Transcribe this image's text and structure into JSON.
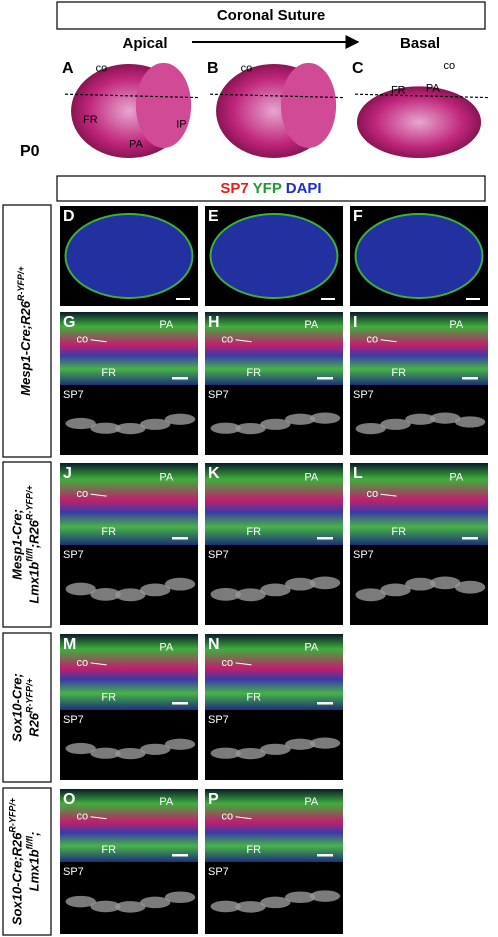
{
  "header": {
    "title": "Coronal Suture",
    "apical": "Apical",
    "basal": "Basal"
  },
  "stage": "P0",
  "top_panels": [
    {
      "letter": "A",
      "labels": [
        "co",
        "FR",
        "PA",
        "IP"
      ]
    },
    {
      "letter": "B",
      "labels": [
        "co"
      ]
    },
    {
      "letter": "C",
      "labels": [
        "co",
        "FR",
        "PA"
      ]
    }
  ],
  "stain_legend": {
    "sp7": "SP7",
    "yfp": "YFP",
    "dapi": "DAPI"
  },
  "overview_panels": [
    "D",
    "E",
    "F"
  ],
  "rows": [
    {
      "genotype": [
        [
          {
            "text": "Mesp1-Cre;R26"
          },
          {
            "sup": "R-YFP/+"
          }
        ]
      ],
      "panels": [
        {
          "letter": "G",
          "labels": [
            "co",
            "PA",
            "FR"
          ],
          "channel": "SP7"
        },
        {
          "letter": "H",
          "labels": [
            "co",
            "PA",
            "FR"
          ],
          "channel": "SP7"
        },
        {
          "letter": "I",
          "labels": [
            "co",
            "PA",
            "FR"
          ],
          "channel": "SP7"
        }
      ]
    },
    {
      "genotype": [
        [
          {
            "text": "Mesp1-Cre;"
          }
        ],
        [
          {
            "text": "Lmx1b"
          },
          {
            "sup": "fl/fl"
          },
          {
            "text": ";R26"
          },
          {
            "sup": "R-YFP/+"
          }
        ]
      ],
      "panels": [
        {
          "letter": "J",
          "labels": [
            "co",
            "PA",
            "FR"
          ],
          "channel": "SP7"
        },
        {
          "letter": "K",
          "labels": [
            "PA",
            "FR"
          ],
          "channel": "SP7"
        },
        {
          "letter": "L",
          "labels": [
            "co",
            "PA",
            "FR"
          ],
          "channel": "SP7"
        }
      ]
    },
    {
      "genotype": [
        [
          {
            "text": "Sox10-Cre;"
          }
        ],
        [
          {
            "text": "R26"
          },
          {
            "sup": "R-YFP/+"
          }
        ]
      ],
      "panels": [
        {
          "letter": "M",
          "labels": [
            "co",
            "PA",
            "FR"
          ],
          "channel": "SP7"
        },
        {
          "letter": "N",
          "labels": [
            "co",
            "PA",
            "FR"
          ],
          "channel": "SP7"
        }
      ]
    },
    {
      "genotype": [
        [
          {
            "text": "Sox10-Cre;R26"
          },
          {
            "sup": "R-YFP/+"
          }
        ],
        [
          {
            "text": "Lmx1b"
          },
          {
            "sup": "fl/fl"
          },
          {
            "text": ";"
          }
        ]
      ],
      "panels": [
        {
          "letter": "O",
          "labels": [
            "co",
            "PA",
            "FR"
          ],
          "channel": "SP7"
        },
        {
          "letter": "P",
          "labels": [
            "co",
            "PA",
            "FR"
          ],
          "channel": "SP7"
        }
      ]
    }
  ]
}
